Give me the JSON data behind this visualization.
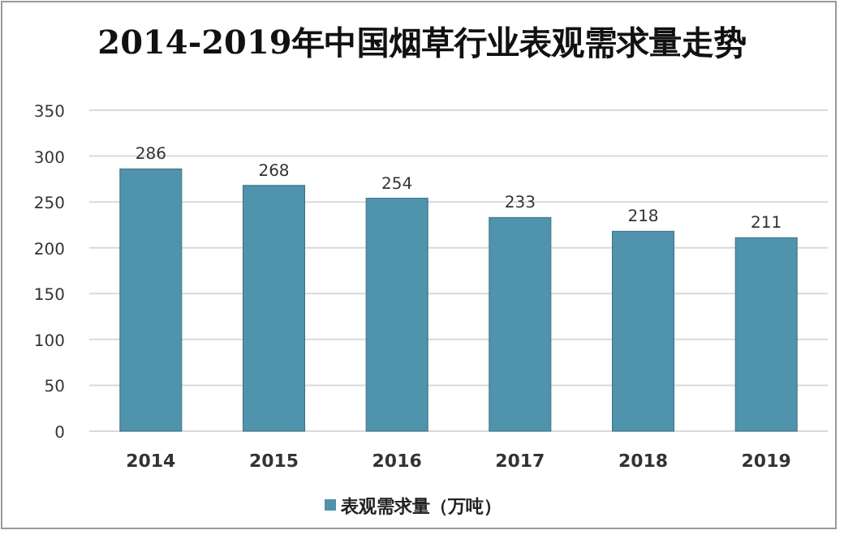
{
  "chart_data": {
    "type": "bar",
    "title": "2014-2019年中国烟草行业表观需求量走势",
    "categories": [
      "2014",
      "2015",
      "2016",
      "2017",
      "2018",
      "2019"
    ],
    "series": [
      {
        "name": "表观需求量（万吨）",
        "color": "#4f93ad",
        "values": [
          286,
          268,
          254,
          233,
          218,
          211
        ]
      }
    ],
    "ylim": [
      0,
      350
    ],
    "yticks": [
      0,
      50,
      100,
      150,
      200,
      250,
      300,
      350
    ],
    "grid": "y",
    "legend": "bottom",
    "data_labels": true
  }
}
